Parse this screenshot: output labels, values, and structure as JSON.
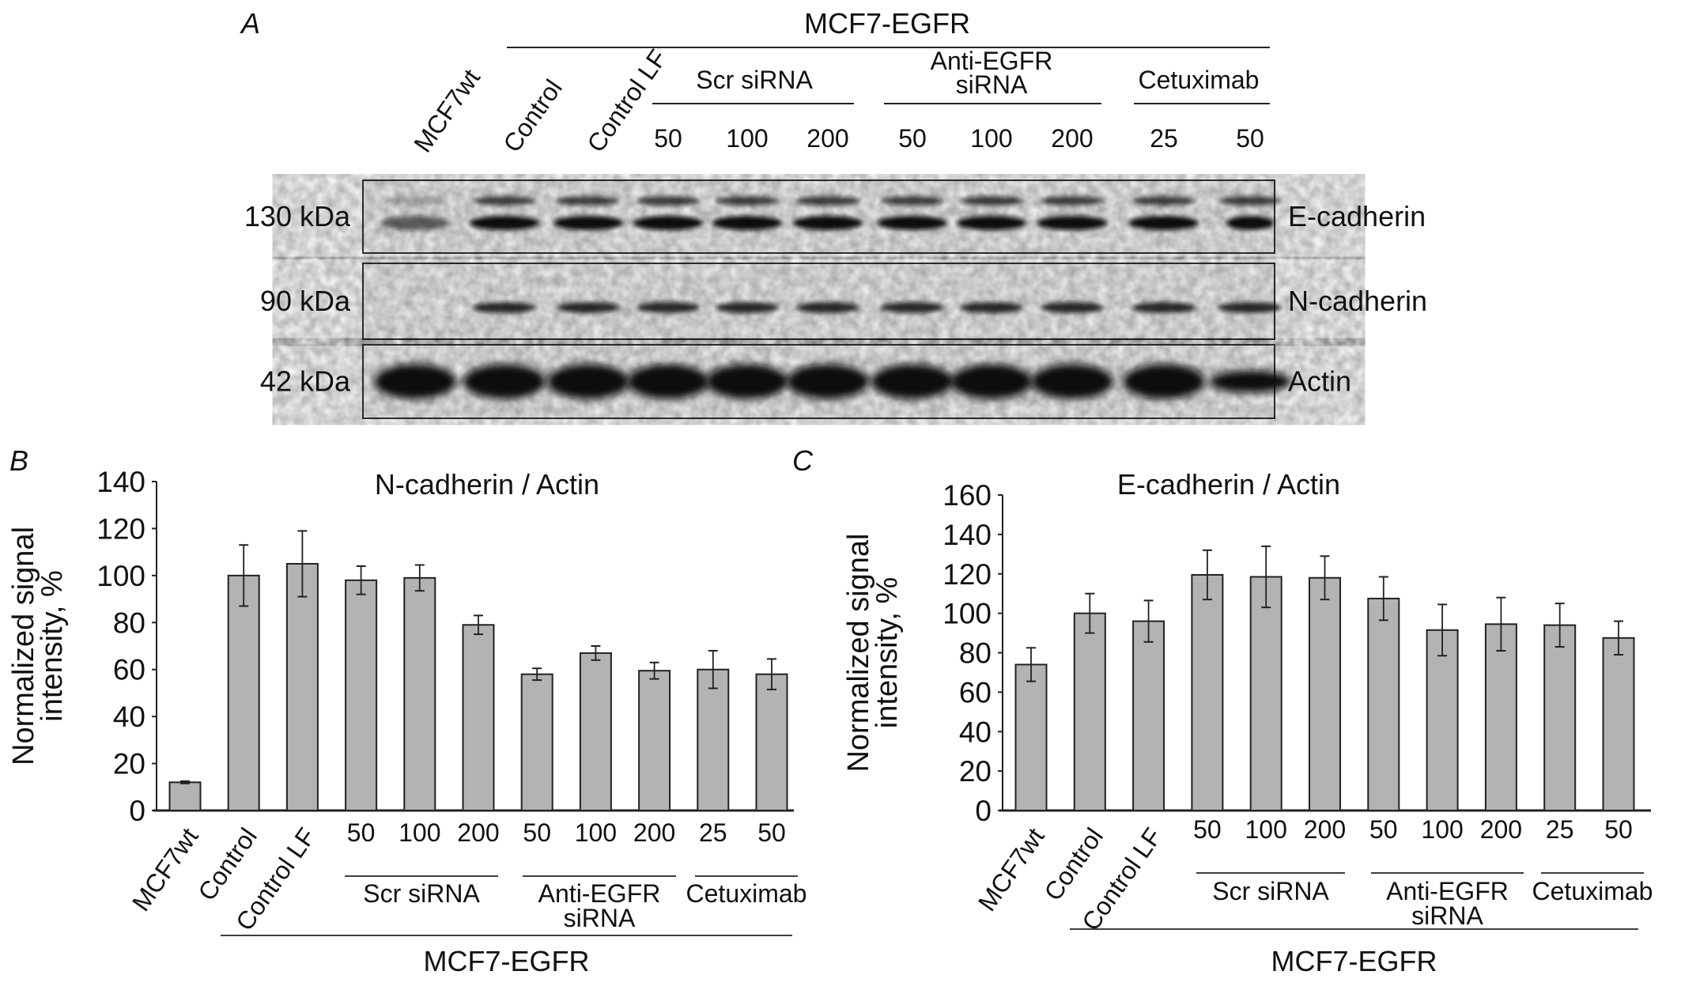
{
  "panel_a": {
    "letter": "A",
    "group_title": "MCF7-EGFR",
    "lanes": [
      "MCF7wt",
      "Control",
      "Control LF"
    ],
    "groups": [
      {
        "label": [
          "Scr siRNA"
        ],
        "doses": [
          "50",
          "100",
          "200"
        ]
      },
      {
        "label": [
          "Anti-EGFR",
          "siRNA"
        ],
        "doses": [
          "50",
          "100",
          "200"
        ]
      },
      {
        "label": [
          "Cetuximab"
        ],
        "doses": [
          "25",
          "50"
        ]
      }
    ],
    "blots": [
      {
        "weight": "130 kDa",
        "protein": "E-cadherin"
      },
      {
        "weight": "90 kDa",
        "protein": "N-cadherin"
      },
      {
        "weight": "42 kDa",
        "protein": "Actin"
      }
    ],
    "band_color": "#111111"
  },
  "chart_data": [
    {
      "type": "bar",
      "panel": "B",
      "title": "N-cadherin / Actin",
      "ylabel": [
        "Normalized signal",
        "intensity, %"
      ],
      "ylim": [
        0,
        140
      ],
      "yticks": [
        0,
        20,
        40,
        60,
        80,
        100,
        120,
        140
      ],
      "categories": [
        "MCF7wt",
        "Control",
        "Control LF",
        "50",
        "100",
        "200",
        "50",
        "100",
        "200",
        "25",
        "50"
      ],
      "values": [
        12,
        100,
        105,
        98,
        99,
        79,
        58,
        67,
        59.5,
        60,
        58
      ],
      "errors": [
        0.5,
        13,
        14,
        6,
        5.5,
        4,
        2.5,
        3,
        3.5,
        8,
        6.5
      ],
      "groups": [
        {
          "label": [
            "Scr siRNA"
          ]
        },
        {
          "label": [
            "Anti-EGFR",
            "siRNA"
          ]
        },
        {
          "label": [
            "Cetuximab"
          ]
        }
      ],
      "outer_group": "MCF7-EGFR",
      "bar_color": "#b3b3b3",
      "grid": false
    },
    {
      "type": "bar",
      "panel": "C",
      "title": "E-cadherin / Actin",
      "ylabel": [
        "Normalized signal",
        "intensity, %"
      ],
      "ylim": [
        0,
        160
      ],
      "yticks": [
        0,
        20,
        40,
        60,
        80,
        100,
        120,
        140,
        160
      ],
      "categories": [
        "MCF7wt",
        "Control",
        "Control LF",
        "50",
        "100",
        "200",
        "50",
        "100",
        "200",
        "25",
        "50"
      ],
      "values": [
        74,
        100,
        96,
        119.5,
        118.5,
        118,
        107.5,
        91.5,
        94.5,
        94,
        87.5
      ],
      "errors": [
        8.5,
        10,
        10.5,
        12.5,
        15.5,
        11,
        11,
        13,
        13.5,
        11,
        8.5
      ],
      "groups": [
        {
          "label": [
            "Scr siRNA"
          ]
        },
        {
          "label": [
            "Anti-EGFR",
            "siRNA"
          ]
        },
        {
          "label": [
            "Cetuximab"
          ]
        }
      ],
      "outer_group": "MCF7-EGFR",
      "bar_color": "#b3b3b3",
      "grid": false
    }
  ]
}
